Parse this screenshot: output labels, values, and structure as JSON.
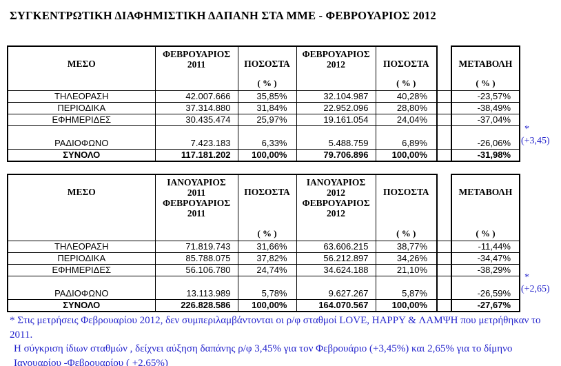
{
  "page": {
    "title": "ΣΥΓΚΕΝΤΡΩΤΙΚΗ ΔΙΑΦΗΜΙΣΤΙΚΗ ΔΑΠΑΝΗ ΣΤΑ ΜΜΕ - ΦΕΒΡΟΥΑΡΙΟΣ 2012"
  },
  "colors": {
    "text": "#000000",
    "note_blue": "#2323cc",
    "background": "#ffffff"
  },
  "tables": [
    {
      "headers": {
        "medium": "ΜΕΣΟ",
        "period_prev": "ΦΕΒΡΟΥΑΡΙΟΣ\n2011",
        "pct1": "ΠΟΣΟΣΤΑ",
        "period_curr": "ΦΕΒΡΟΥΑΡΙΟΣ\n2012",
        "pct2": "ΠΟΣΟΣΤΑ",
        "change": "ΜΕΤΑΒΟΛΗ",
        "pct_unit": "( % )"
      },
      "rows": [
        {
          "label": "ΤΗΛΕΟΡΑΣΗ",
          "prev": "42.007.666",
          "prev_pct": "35,85%",
          "curr": "32.104.987",
          "curr_pct": "40,28%",
          "change": "-23,57%"
        },
        {
          "label": "ΠΕΡΙΟΔΙΚΑ",
          "prev": "37.314.880",
          "prev_pct": "31,84%",
          "curr": "22.952.096",
          "curr_pct": "28,80%",
          "change": "-38,49%"
        },
        {
          "label": "ΕΦΗΜΕΡΙΔΕΣ",
          "prev": "30.435.474",
          "prev_pct": "25,97%",
          "curr": "19.161.054",
          "curr_pct": "24,04%",
          "change": "-37,04%"
        },
        {
          "label": "ΡΑΔΙΟΦΩΝΟ",
          "prev": "7.423.183",
          "prev_pct": "6,33%",
          "curr": "5.488.759",
          "curr_pct": "6,89%",
          "change": "-26,06%"
        }
      ],
      "total": {
        "label": "ΣΥΝΟΛΟ",
        "prev": "117.181.202",
        "prev_pct": "100,00%",
        "curr": "79.706.896",
        "curr_pct": "100,00%",
        "change": "-31,98%"
      },
      "note": {
        "star": "*",
        "value": "(+3,45)"
      }
    },
    {
      "headers": {
        "medium": "ΜΕΣΟ",
        "period_prev": "ΙΑΝΟΥΑΡΙΟΣ\n2011\nΦΕΒΡΟΥΑΡΙΟΣ\n2011",
        "pct1": "ΠΟΣΟΣΤΑ",
        "period_curr": "ΙΑΝΟΥΑΡΙΟΣ\n2012\nΦΕΒΡΟΥΑΡΙΟΣ\n2012",
        "pct2": "ΠΟΣΟΣΤΑ",
        "change": "ΜΕΤΑΒΟΛΗ",
        "pct_unit": "( % )"
      },
      "rows": [
        {
          "label": "ΤΗΛΕΟΡΑΣΗ",
          "prev": "71.819.743",
          "prev_pct": "31,66%",
          "curr": "63.606.215",
          "curr_pct": "38,77%",
          "change": "-11,44%"
        },
        {
          "label": "ΠΕΡΙΟΔΙΚΑ",
          "prev": "85.788.075",
          "prev_pct": "37,82%",
          "curr": "56.212.897",
          "curr_pct": "34,26%",
          "change": "-34,47%"
        },
        {
          "label": "ΕΦΗΜΕΡΙΔΕΣ",
          "prev": "56.106.780",
          "prev_pct": "24,74%",
          "curr": "34.624.188",
          "curr_pct": "21,10%",
          "change": "-38,29%"
        },
        {
          "label": "ΡΑΔΙΟΦΩΝΟ",
          "prev": "13.113.989",
          "prev_pct": "5,78%",
          "curr": "9.627.267",
          "curr_pct": "5,87%",
          "change": "-26,59%"
        }
      ],
      "total": {
        "label": "ΣΥΝΟΛΟ",
        "prev": "226.828.586",
        "prev_pct": "100,00%",
        "curr": "164.070.567",
        "curr_pct": "100,00%",
        "change": "-27,67%"
      },
      "note": {
        "star": "*",
        "value": "(+2,65)"
      }
    }
  ],
  "footnote": {
    "line1": "* Στις μετρήσεις Φεβρουαρίου 2012, δεν συμπεριλαμβάντονται οι ρ/φ σταθμοί LOVE, HAPPY & ΛΑΜΨΗ που μετρήθηκαν το 2011.",
    "line2": "Η σύγκριση ίδιων σταθμών , δείχνει αύξηση δαπάνης ρ/φ  3,45% για τον Φεβρουάριο (+3,45%) και 2,65% για το δίμηνο",
    "line3": "Ιανουαρίου -Φεβρουαρίου ( +2,65%)"
  }
}
